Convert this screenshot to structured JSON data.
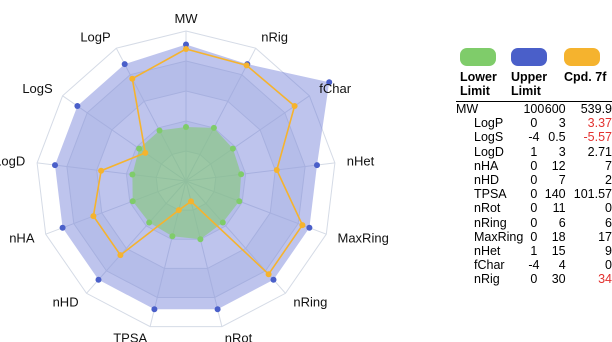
{
  "chart_data": {
    "type": "radar",
    "axes": [
      "MW",
      "nRig",
      "fChar",
      "nHet",
      "MaxRing",
      "nRing",
      "nRot",
      "TPSA",
      "nHD",
      "nHA",
      "LogD",
      "LogS",
      "LogP"
    ],
    "series": [
      {
        "name": "Lower Limit",
        "color": "#7fcc6a",
        "normalized": [
          0.36,
          0.4,
          0.38,
          0.37,
          0.38,
          0.37,
          0.4,
          0.38,
          0.37,
          0.38,
          0.36,
          0.38,
          0.38
        ]
      },
      {
        "name": "Upper Limit",
        "color": "#4a5fc9",
        "normalized": [
          0.91,
          0.88,
          1.16,
          0.88,
          0.88,
          0.88,
          0.88,
          0.88,
          0.88,
          0.88,
          0.88,
          0.88,
          0.88
        ]
      },
      {
        "name": "Cpd. 7f",
        "color": "#f5b32e",
        "normalized": [
          0.88,
          0.87,
          0.88,
          0.61,
          0.83,
          0.83,
          0.14,
          0.2,
          0.66,
          0.66,
          0.57,
          0.33,
          0.77
        ]
      }
    ],
    "rings": 5,
    "grid": true
  },
  "legend": [
    {
      "label": "Lower Limit",
      "color": "#7fcc6a"
    },
    {
      "label": "Upper Limit",
      "color": "#4a5fc9"
    },
    {
      "label": "Cpd. 7f",
      "color": "#f5b32e"
    }
  ],
  "table": {
    "rows": [
      {
        "name": "MW",
        "lower": "100",
        "upper": "600",
        "cpd": "539.9",
        "cpd_red": false
      },
      {
        "name": "LogP",
        "lower": "0",
        "upper": "3",
        "cpd": "3.37",
        "cpd_red": true
      },
      {
        "name": "LogS",
        "lower": "-4",
        "upper": "0.5",
        "cpd": "-5.57",
        "cpd_red": true
      },
      {
        "name": "LogD",
        "lower": "1",
        "upper": "3",
        "cpd": "2.71",
        "cpd_red": false
      },
      {
        "name": "nHA",
        "lower": "0",
        "upper": "12",
        "cpd": "7",
        "cpd_red": false
      },
      {
        "name": "nHD",
        "lower": "0",
        "upper": "7",
        "cpd": "2",
        "cpd_red": false
      },
      {
        "name": "TPSA",
        "lower": "0",
        "upper": "140",
        "cpd": "101.57",
        "cpd_red": false
      },
      {
        "name": "nRot",
        "lower": "0",
        "upper": "11",
        "cpd": "0",
        "cpd_red": false
      },
      {
        "name": "nRing",
        "lower": "0",
        "upper": "6",
        "cpd": "6",
        "cpd_red": false
      },
      {
        "name": "MaxRing",
        "lower": "0",
        "upper": "18",
        "cpd": "17",
        "cpd_red": false
      },
      {
        "name": "nHet",
        "lower": "1",
        "upper": "15",
        "cpd": "9",
        "cpd_red": false
      },
      {
        "name": "fChar",
        "lower": "-4",
        "upper": "4",
        "cpd": "0",
        "cpd_red": false
      },
      {
        "name": "nRig",
        "lower": "0",
        "upper": "30",
        "cpd": "34",
        "cpd_red": true
      }
    ]
  },
  "colors": {
    "red_value": "#e3312f",
    "grid": "#d5dbe6",
    "bg_band": "#eef2f8"
  }
}
